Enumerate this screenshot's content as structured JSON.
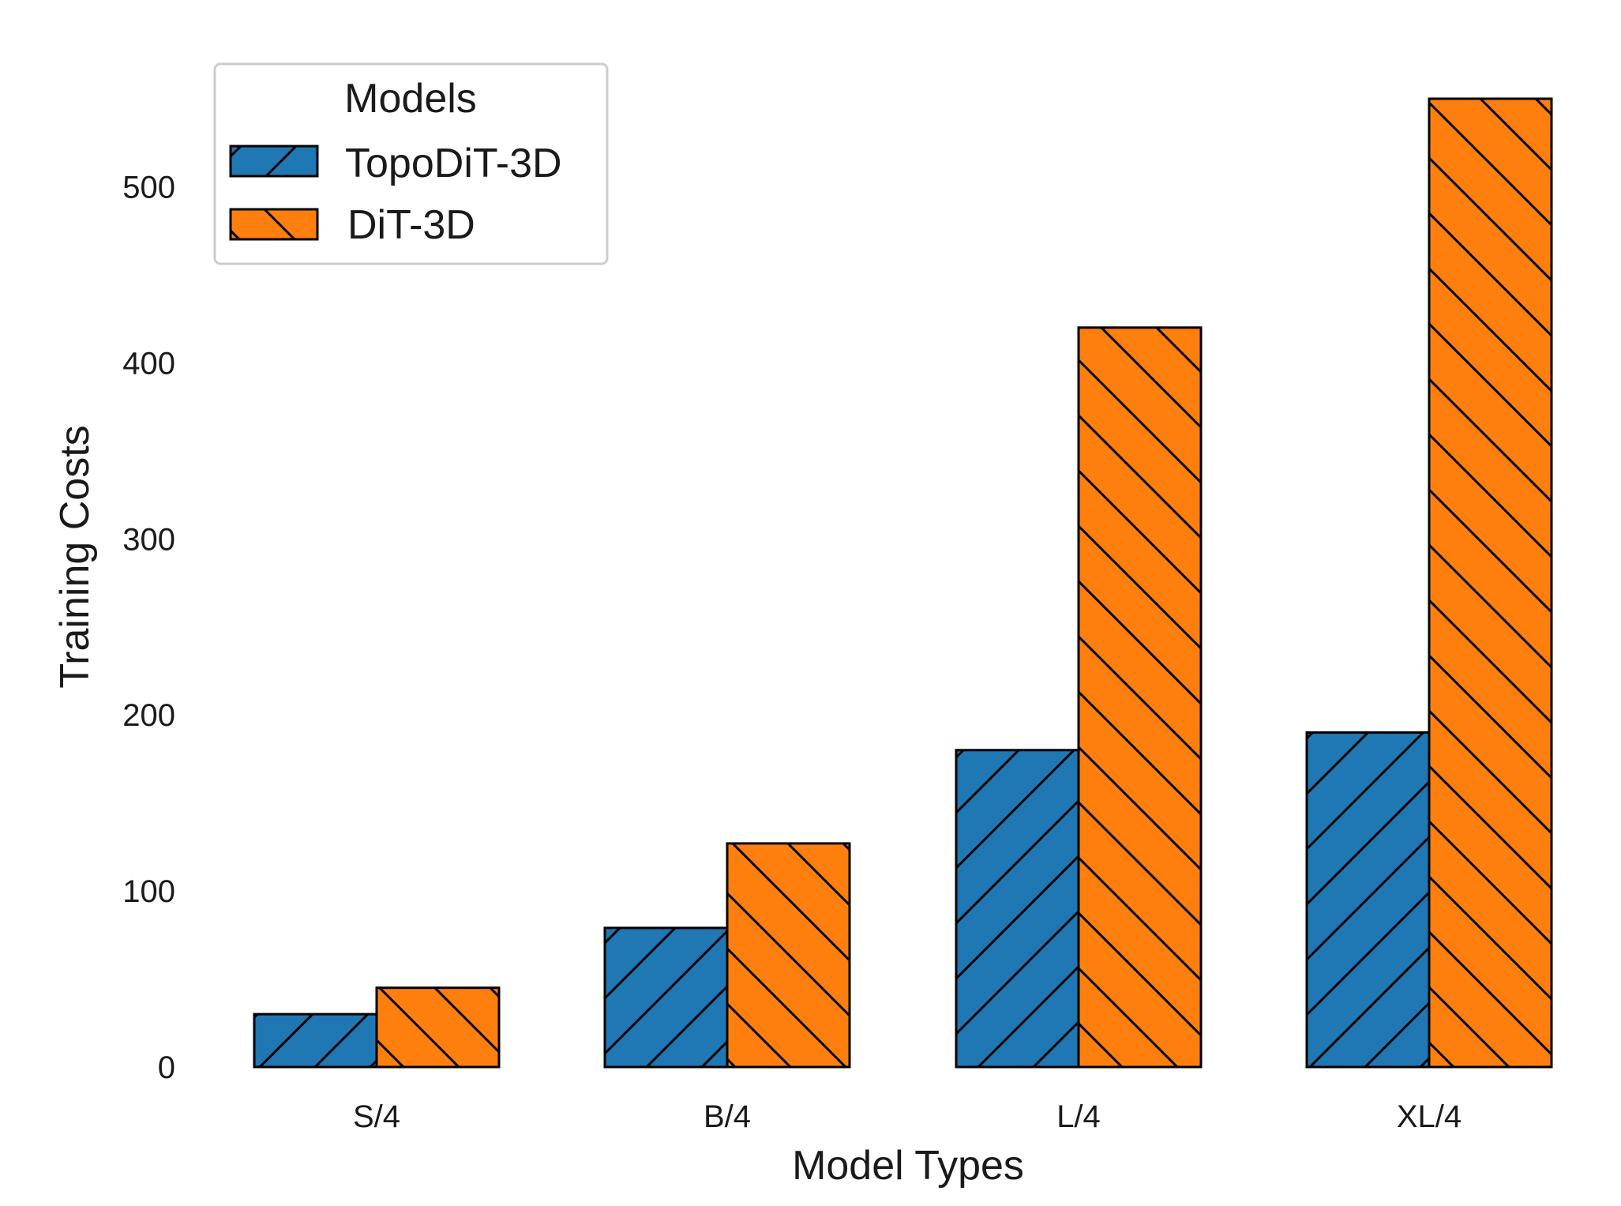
{
  "chart_data": {
    "type": "bar",
    "title": "",
    "xlabel": "Model Types",
    "ylabel": "Training Costs",
    "categories": [
      "S/4",
      "B/4",
      "L/4",
      "XL/4"
    ],
    "ylim": [
      0,
      560
    ],
    "yticks": [
      0,
      100,
      200,
      300,
      400,
      500
    ],
    "grid": false,
    "legend": {
      "title": "Models",
      "placement": "top-left"
    },
    "series": [
      {
        "name": "TopoDiT-3D",
        "values": [
          30,
          79,
          180,
          190
        ],
        "color": "#1f77b4",
        "hatch": "forward-slash"
      },
      {
        "name": "DiT-3D",
        "values": [
          45,
          127,
          420,
          550
        ],
        "color": "#ff7f0e",
        "hatch": "back-slash"
      }
    ]
  }
}
